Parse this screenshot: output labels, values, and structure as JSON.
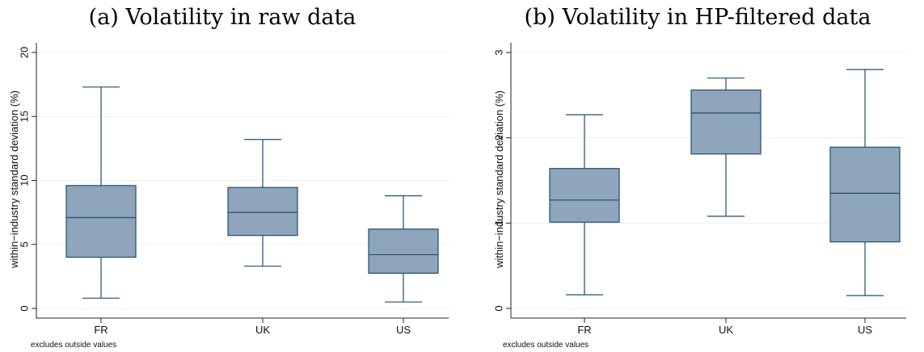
{
  "chart_data": [
    {
      "type": "box",
      "title": "(a) Volatility in raw data",
      "ylabel": "within−industry standard deviation (%)",
      "note": "excludes outside values",
      "ylim": [
        0,
        20
      ],
      "yticks": [
        0,
        5,
        10,
        15,
        20
      ],
      "grid": true,
      "categories": [
        "FR",
        "UK",
        "US"
      ],
      "boxes": [
        {
          "category": "FR",
          "min": 0.8,
          "q1": 4.0,
          "median": 7.1,
          "q3": 9.6,
          "max": 17.3
        },
        {
          "category": "UK",
          "min": 3.3,
          "q1": 5.7,
          "median": 7.5,
          "q3": 9.45,
          "max": 13.2
        },
        {
          "category": "US",
          "min": 0.5,
          "q1": 2.75,
          "median": 4.2,
          "q3": 6.2,
          "max": 8.8
        }
      ]
    },
    {
      "type": "box",
      "title": "(b) Volatility in HP-filtered data",
      "ylabel": "within−industry standard deviation (%)",
      "note": "excludes outside values",
      "ylim": [
        0,
        3
      ],
      "yticks": [
        0,
        1,
        2,
        3
      ],
      "grid": true,
      "categories": [
        "FR",
        "UK",
        "US"
      ],
      "boxes": [
        {
          "category": "FR",
          "min": 0.16,
          "q1": 1.01,
          "median": 1.27,
          "q3": 1.64,
          "max": 2.27
        },
        {
          "category": "UK",
          "min": 1.08,
          "q1": 1.81,
          "median": 2.29,
          "q3": 2.56,
          "max": 2.7
        },
        {
          "category": "US",
          "min": 0.15,
          "q1": 0.78,
          "median": 1.35,
          "q3": 1.89,
          "max": 2.8
        }
      ]
    }
  ],
  "colors": {
    "box_fill": "#8fa5bb",
    "box_stroke": "#1f4e6e",
    "whisker": "#1f4e6e",
    "grid": "#eaf0f3"
  }
}
